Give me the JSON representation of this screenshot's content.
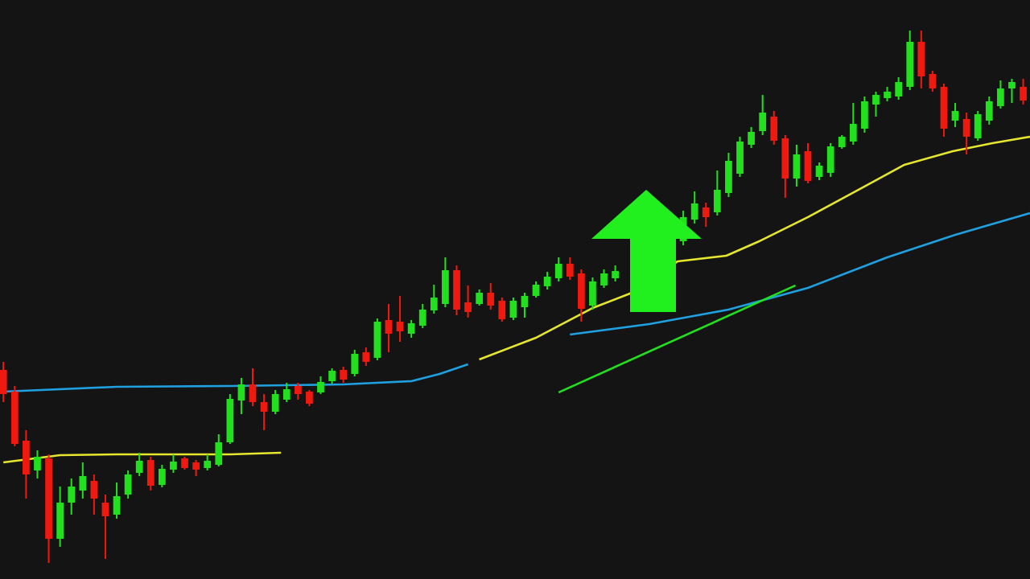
{
  "chart_data": {
    "type": "candlestick",
    "up_color": "#22e01e",
    "down_color": "#f0190f",
    "xlim": [
      -0.3,
      90.6
    ],
    "ylim": [
      0,
      72
    ],
    "x": [
      0,
      1,
      2,
      3,
      4,
      5,
      6,
      7,
      8,
      9,
      10,
      11,
      12,
      13,
      14,
      15,
      16,
      17,
      18,
      19,
      20,
      21,
      22,
      23,
      24,
      25,
      26,
      27,
      28,
      29,
      30,
      31,
      32,
      33,
      34,
      35,
      36,
      37,
      38,
      39,
      40,
      41,
      42,
      43,
      44,
      45,
      46,
      47,
      48,
      49,
      50,
      51,
      52,
      53,
      54,
      58,
      59,
      60,
      61,
      62,
      63,
      64,
      65,
      66,
      67,
      68,
      69,
      70,
      71,
      72,
      73,
      74,
      75,
      76,
      77,
      78,
      79,
      80,
      81,
      82,
      83,
      84,
      85,
      86,
      87,
      88,
      89,
      90
    ],
    "open": [
      26,
      23.3,
      17.2,
      13.5,
      15,
      5,
      9.5,
      11,
      12.2,
      9.5,
      8,
      10.5,
      13.2,
      14.8,
      11.7,
      13.6,
      15,
      14.5,
      13.8,
      14.2,
      17,
      22.2,
      24.2,
      22,
      20.8,
      22.3,
      24,
      23.3,
      23.2,
      24.6,
      26,
      25.5,
      28.2,
      27.5,
      32.2,
      32,
      30.5,
      31.5,
      33.4,
      34.2,
      38.4,
      34.4,
      34.2,
      35.6,
      34.6,
      32.5,
      33.8,
      35.2,
      36.4,
      37.4,
      39.2,
      38,
      34,
      36.5,
      37.4,
      42.4,
      40.2,
      42,
      44.7,
      46.2,
      45.6,
      48,
      50.4,
      54,
      55.7,
      57.5,
      54.8,
      49.8,
      53.2,
      50,
      50.5,
      53.7,
      54.4,
      56,
      59,
      59.8,
      60,
      61.2,
      66.8,
      62.8,
      61.2,
      57,
      57.2,
      54.8,
      57,
      58.8,
      61,
      61.2
    ],
    "high": [
      27,
      24,
      18.5,
      16,
      15.5,
      11.5,
      12.5,
      14.5,
      13,
      10.5,
      12,
      13.5,
      15.7,
      15.2,
      14.2,
      15.5,
      15.2,
      14.8,
      15.5,
      18,
      23,
      25,
      26.2,
      23,
      23.5,
      24.4,
      24.4,
      23.5,
      25.2,
      26.2,
      26.4,
      28.5,
      28.8,
      32.4,
      34.2,
      35.2,
      32.2,
      34.2,
      36.6,
      40,
      39,
      36.5,
      36,
      36.8,
      35,
      35,
      35.6,
      37,
      38.2,
      40,
      40,
      38.5,
      37.5,
      38.5,
      39,
      43.2,
      43.5,
      45.8,
      48.2,
      46.8,
      50.8,
      53,
      55,
      56.2,
      60.2,
      58.2,
      55.2,
      54,
      54.2,
      51.8,
      54.2,
      55.2,
      59.2,
      60,
      60.6,
      61.2,
      62.4,
      68.2,
      68.2,
      63.2,
      61.6,
      59.2,
      58,
      58.2,
      60,
      62,
      62.2,
      62.2
    ],
    "low": [
      22,
      16.5,
      10,
      12.5,
      2,
      4,
      8,
      10,
      8,
      2.5,
      7.5,
      10,
      12.8,
      11,
      11.4,
      13.2,
      13.6,
      12.8,
      13.5,
      14,
      16.8,
      20.5,
      21.5,
      18.5,
      20.5,
      22,
      22.3,
      21.5,
      23,
      24.3,
      24.4,
      25.2,
      26.5,
      27.2,
      28.2,
      29.5,
      30,
      31.2,
      33,
      33.8,
      32.8,
      32.5,
      34,
      33.5,
      32,
      32.2,
      32.5,
      35,
      36,
      37,
      37.2,
      32,
      33.5,
      36.2,
      37,
      39.8,
      40,
      41.5,
      44.2,
      43.8,
      45.2,
      47.5,
      50,
      53.6,
      55.2,
      54,
      47.4,
      48.8,
      49.2,
      49.6,
      50,
      53.5,
      54,
      55.5,
      57.5,
      59.4,
      59.6,
      60.8,
      61,
      60.6,
      55,
      56.2,
      52.8,
      54.5,
      56.5,
      58.5,
      59.2,
      59
    ],
    "close": [
      23,
      16.8,
      13,
      15.2,
      5,
      9.5,
      11.5,
      12.8,
      10,
      7.8,
      10.3,
      13,
      14.7,
      11.6,
      13.7,
      14.6,
      13.8,
      13.6,
      14.7,
      17,
      22.4,
      24.2,
      22,
      20.8,
      23,
      23.6,
      23,
      21.8,
      24.5,
      25.9,
      24.8,
      28,
      27,
      32,
      30.5,
      30.8,
      31.8,
      33.5,
      35,
      38.4,
      33.5,
      33.2,
      35.6,
      34,
      32.3,
      34.6,
      35.2,
      36.6,
      37.6,
      39.2,
      37.6,
      33.6,
      37,
      38,
      38.3,
      40.2,
      43,
      45,
      46.7,
      45,
      48.4,
      52,
      54.4,
      55.6,
      58,
      54.5,
      49.8,
      52.8,
      49.5,
      51.4,
      53.8,
      55,
      56.6,
      59.4,
      60.2,
      60.6,
      61.8,
      66.8,
      62.5,
      61,
      56,
      58.2,
      55,
      57.8,
      59.4,
      61,
      61.8,
      59.5
    ],
    "lines": [
      {
        "color": "#e6e62e",
        "x": [
          0,
          5,
          10,
          15,
          20,
          24.5,
          null,
          42,
          47,
          52,
          55.3,
          59.5,
          63.8,
          66.7,
          71,
          75.2,
          79.5,
          83.8,
          87.3,
          90.6
        ],
        "values": [
          14.5,
          15.4,
          15.5,
          15.5,
          15.5,
          15.7,
          null,
          27.3,
          30,
          33.7,
          35.5,
          39.5,
          40.2,
          42,
          45,
          48.2,
          51.5,
          53.2,
          54.2,
          55
        ]
      },
      {
        "color": "#1fa0e0",
        "x": [
          0,
          10,
          20,
          30,
          36,
          38.5,
          41,
          null,
          50,
          57,
          64,
          71,
          78,
          84,
          90.6
        ],
        "values": [
          23.3,
          23.9,
          24,
          24.2,
          24.6,
          25.5,
          26.7,
          null,
          30.4,
          31.7,
          33.5,
          36.2,
          40,
          42.8,
          45.5
        ]
      },
      {
        "color": "#22e01e",
        "x": [
          49,
          69.9
        ],
        "values": [
          23.2,
          36.5
        ]
      }
    ]
  }
}
